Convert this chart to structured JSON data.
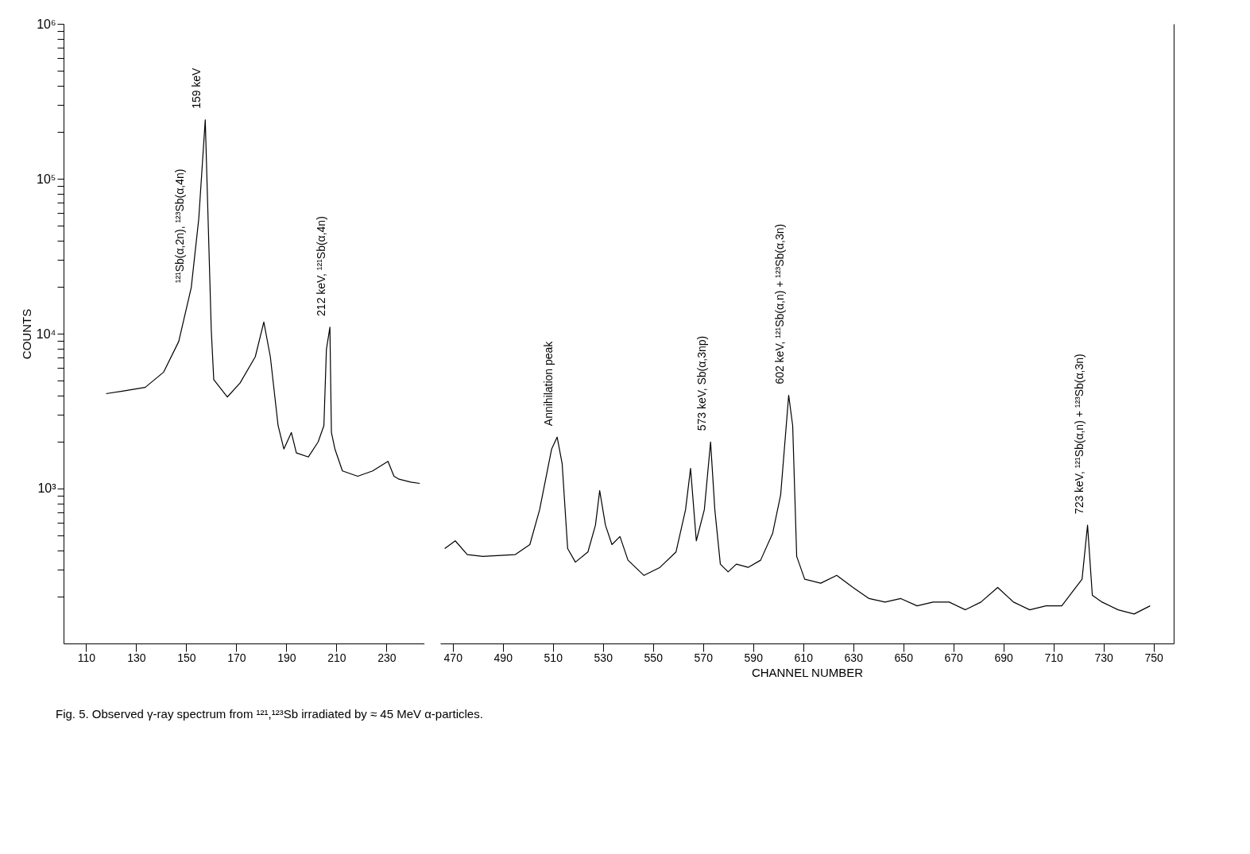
{
  "chart_data": [
    {
      "type": "line",
      "ylabel": "COUNTS",
      "log": true,
      "xlim": [
        101,
        245
      ],
      "xticks": [
        110,
        130,
        150,
        170,
        190,
        210,
        230
      ],
      "ylim": [
        100,
        1000000
      ],
      "yticks": [
        {
          "value": 200,
          "label": null
        },
        {
          "value": 300,
          "label": null
        },
        {
          "value": 400,
          "label": null
        },
        {
          "value": 500,
          "label": null
        },
        {
          "value": 600,
          "label": null
        },
        {
          "value": 700,
          "label": null
        },
        {
          "value": 800,
          "label": null
        },
        {
          "value": 900,
          "label": null
        },
        {
          "value": 1000,
          "label": "10³"
        },
        {
          "value": 2000,
          "label": null
        },
        {
          "value": 3000,
          "label": null
        },
        {
          "value": 4000,
          "label": null
        },
        {
          "value": 5000,
          "label": null
        },
        {
          "value": 6000,
          "label": null
        },
        {
          "value": 7000,
          "label": null
        },
        {
          "value": 8000,
          "label": null
        },
        {
          "value": 9000,
          "label": null
        },
        {
          "value": 10000,
          "label": "10⁴"
        },
        {
          "value": 20000,
          "label": null
        },
        {
          "value": 30000,
          "label": null
        },
        {
          "value": 40000,
          "label": null
        },
        {
          "value": 50000,
          "label": null
        },
        {
          "value": 60000,
          "label": null
        },
        {
          "value": 70000,
          "label": null
        },
        {
          "value": 80000,
          "label": null
        },
        {
          "value": 90000,
          "label": null
        },
        {
          "value": 100000,
          "label": "10⁵"
        },
        {
          "value": 200000,
          "label": null
        },
        {
          "value": 300000,
          "label": null
        },
        {
          "value": 400000,
          "label": null
        },
        {
          "value": 500000,
          "label": null
        },
        {
          "value": 600000,
          "label": null
        },
        {
          "value": 700000,
          "label": null
        },
        {
          "value": 800000,
          "label": null
        },
        {
          "value": 900000,
          "label": null
        },
        {
          "value": 1000000,
          "label": "10⁶"
        }
      ],
      "series": [
        {
          "color": "#000000",
          "x": [
            118,
            124.5,
            133.6,
            141,
            147,
            152,
            155,
            157.6,
            160,
            161,
            166.4,
            171.5,
            177.6,
            181,
            183.6,
            186.7,
            189,
            192,
            194,
            198.8,
            202.7,
            205,
            206,
            207.4,
            208,
            209.4,
            212.4,
            218.5,
            224.5,
            230.6,
            233,
            235,
            239.7,
            243.3
          ],
          "values": [
            4100,
            4250,
            4500,
            5650,
            8900,
            19800,
            55000,
            240000,
            10600,
            5050,
            3900,
            4800,
            7100,
            11900,
            7100,
            2550,
            1800,
            2300,
            1700,
            1600,
            2000,
            2550,
            7900,
            11000,
            2300,
            1800,
            1300,
            1200,
            1300,
            1500,
            1200,
            1150,
            1100,
            1080
          ]
        }
      ],
      "annotations": [
        {
          "text": "¹²¹Sb(α,2n), ¹²³Sb(α,4n)",
          "x": 151,
          "y": 18000
        },
        {
          "text": "159 keV",
          "x": 157.6,
          "y": 240000
        },
        {
          "text": "212 keV, ¹²¹Sb(α,4n)",
          "x": 207.4,
          "y": 11000
        },
        "Fig. 5. Observed γ-ray spectrum from ¹²¹,¹²³Sb irradiated by ≈ 45 MeV α-particles."
      ]
    },
    {
      "type": "line",
      "xlabel": "CHANNEL NUMBER",
      "log": true,
      "tick_labels": "x",
      "xlim": [
        465,
        758
      ],
      "xticks": [
        470,
        490,
        510,
        530,
        550,
        570,
        590,
        610,
        630,
        650,
        670,
        690,
        710,
        730,
        750
      ],
      "ylim": [
        100,
        1000000
      ],
      "series": [
        {
          "color": "#000000",
          "x": [
            466.8,
            471,
            475.8,
            482,
            495,
            500.8,
            504.7,
            509.5,
            511.7,
            513.7,
            515.9,
            519,
            524,
            527,
            528.7,
            531,
            533.6,
            536.8,
            540,
            546.4,
            552.8,
            559.2,
            563,
            565,
            567.3,
            570.5,
            573,
            574.7,
            576.9,
            580,
            583.3,
            588,
            593,
            597.8,
            601,
            604.2,
            605.8,
            607.4,
            610.6,
            617,
            623.4,
            629.9,
            636.3,
            642.7,
            649,
            655.5,
            661.9,
            668.3,
            674.8,
            681,
            687.7,
            694,
            700.5,
            707,
            713.3,
            718,
            721.4,
            723.6,
            725.5,
            729.4,
            735.8,
            742.2,
            748.6
          ],
          "values": [
            410,
            460,
            375,
            365,
            375,
            435,
            730,
            1800,
            2150,
            1450,
            410,
            335,
            390,
            580,
            970,
            580,
            435,
            490,
            345,
            275,
            310,
            390,
            730,
            1350,
            460,
            730,
            2000,
            730,
            325,
            290,
            325,
            310,
            345,
            515,
            910,
            4000,
            2550,
            365,
            260,
            245,
            275,
            230,
            195,
            185,
            195,
            175,
            185,
            185,
            165,
            185,
            230,
            185,
            165,
            175,
            175,
            220,
            260,
            580,
            205,
            185,
            165,
            155,
            175
          ]
        }
      ],
      "annotations": [
        {
          "text": "Annihilation peak",
          "x": 511.7,
          "y": 2150
        },
        {
          "text": "573 keV, Sb(α,3np)",
          "x": 573,
          "y": 2000
        },
        {
          "text": "602 keV, ¹²¹Sb(α,n) + ¹²³Sb(α,3n)",
          "x": 604.2,
          "y": 4000
        },
        {
          "text": "723 keV, ¹²¹Sb(α,n) + ¹²³Sb(α,3n)",
          "x": 723.6,
          "y": 580
        }
      ]
    }
  ]
}
